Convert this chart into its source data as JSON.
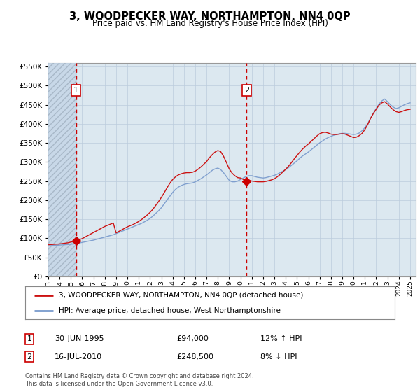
{
  "title": "3, WOODPECKER WAY, NORTHAMPTON, NN4 0QP",
  "subtitle": "Price paid vs. HM Land Registry's House Price Index (HPI)",
  "sale1_label": "1",
  "sale2_label": "2",
  "sale1_x": 1995.46,
  "sale2_x": 2010.54,
  "sale1_price": 94000,
  "sale2_price": 248500,
  "legend_line1": "3, WOODPECKER WAY, NORTHAMPTON, NN4 0QP (detached house)",
  "legend_line2": "HPI: Average price, detached house, West Northamptonshire",
  "note1_date": "30-JUN-1995",
  "note1_price": "£94,000",
  "note1_hpi": "12% ↑ HPI",
  "note2_date": "16-JUL-2010",
  "note2_price": "£248,500",
  "note2_hpi": "8% ↓ HPI",
  "footer": "Contains HM Land Registry data © Crown copyright and database right 2024.\nThis data is licensed under the Open Government Licence v3.0.",
  "hpi_color": "#7799cc",
  "price_color": "#cc1111",
  "sale_marker_color": "#cc0000",
  "dashed_line_color": "#cc0000",
  "grid_color": "#bbccdd",
  "bg_main": "#dce8f0",
  "bg_hatch": "#c8d8e8",
  "ylim_min": 0,
  "ylim_max": 560000,
  "xlim_min": 1993.0,
  "xlim_max": 2025.5,
  "hpi_dates": [
    1993.0,
    1993.25,
    1993.5,
    1993.75,
    1994.0,
    1994.25,
    1994.5,
    1994.75,
    1995.0,
    1995.25,
    1995.5,
    1995.75,
    1996.0,
    1996.25,
    1996.5,
    1996.75,
    1997.0,
    1997.25,
    1997.5,
    1997.75,
    1998.0,
    1998.25,
    1998.5,
    1998.75,
    1999.0,
    1999.25,
    1999.5,
    1999.75,
    2000.0,
    2000.25,
    2000.5,
    2000.75,
    2001.0,
    2001.25,
    2001.5,
    2001.75,
    2002.0,
    2002.25,
    2002.5,
    2002.75,
    2003.0,
    2003.25,
    2003.5,
    2003.75,
    2004.0,
    2004.25,
    2004.5,
    2004.75,
    2005.0,
    2005.25,
    2005.5,
    2005.75,
    2006.0,
    2006.25,
    2006.5,
    2006.75,
    2007.0,
    2007.25,
    2007.5,
    2007.75,
    2008.0,
    2008.25,
    2008.5,
    2008.75,
    2009.0,
    2009.25,
    2009.5,
    2009.75,
    2010.0,
    2010.25,
    2010.5,
    2010.75,
    2011.0,
    2011.25,
    2011.5,
    2011.75,
    2012.0,
    2012.25,
    2012.5,
    2012.75,
    2013.0,
    2013.25,
    2013.5,
    2013.75,
    2014.0,
    2014.25,
    2014.5,
    2014.75,
    2015.0,
    2015.25,
    2015.5,
    2015.75,
    2016.0,
    2016.25,
    2016.5,
    2016.75,
    2017.0,
    2017.25,
    2017.5,
    2017.75,
    2018.0,
    2018.25,
    2018.5,
    2018.75,
    2019.0,
    2019.25,
    2019.5,
    2019.75,
    2020.0,
    2020.25,
    2020.5,
    2020.75,
    2021.0,
    2021.25,
    2021.5,
    2021.75,
    2022.0,
    2022.25,
    2022.5,
    2022.75,
    2023.0,
    2023.25,
    2023.5,
    2023.75,
    2024.0,
    2024.25,
    2024.5,
    2024.75,
    2025.0
  ],
  "hpi_values": [
    80000,
    80500,
    81000,
    81500,
    82000,
    82500,
    83000,
    83500,
    84000,
    85000,
    86000,
    87500,
    89000,
    90500,
    92000,
    93500,
    95000,
    97000,
    99000,
    101000,
    103000,
    105000,
    107000,
    109000,
    112000,
    115000,
    118000,
    121000,
    124000,
    127000,
    130000,
    133000,
    136000,
    139000,
    143000,
    147000,
    152000,
    158000,
    165000,
    172000,
    180000,
    190000,
    200000,
    210000,
    220000,
    228000,
    234000,
    238000,
    241000,
    243000,
    244000,
    245000,
    248000,
    252000,
    256000,
    261000,
    266000,
    272000,
    278000,
    282000,
    284000,
    280000,
    272000,
    262000,
    252000,
    248000,
    248000,
    250000,
    254000,
    258000,
    262000,
    264000,
    264000,
    262000,
    260000,
    259000,
    258000,
    259000,
    261000,
    263000,
    265000,
    268000,
    272000,
    276000,
    280000,
    285000,
    291000,
    297000,
    303000,
    310000,
    316000,
    321000,
    326000,
    332000,
    338000,
    344000,
    350000,
    355000,
    360000,
    364000,
    367000,
    370000,
    372000,
    374000,
    375000,
    375000,
    374000,
    373000,
    372000,
    373000,
    376000,
    382000,
    390000,
    400000,
    415000,
    428000,
    440000,
    452000,
    460000,
    465000,
    458000,
    450000,
    444000,
    440000,
    442000,
    446000,
    450000,
    453000,
    455000
  ],
  "red_dates": [
    1993.0,
    1993.25,
    1993.5,
    1993.75,
    1994.0,
    1994.25,
    1994.5,
    1994.75,
    1995.0,
    1995.25,
    1995.5,
    1995.75,
    1996.0,
    1996.25,
    1996.5,
    1996.75,
    1997.0,
    1997.25,
    1997.5,
    1997.75,
    1998.0,
    1998.25,
    1998.5,
    1998.75,
    1999.0,
    1999.25,
    1999.5,
    1999.75,
    2000.0,
    2000.25,
    2000.5,
    2000.75,
    2001.0,
    2001.25,
    2001.5,
    2001.75,
    2002.0,
    2002.25,
    2002.5,
    2002.75,
    2003.0,
    2003.25,
    2003.5,
    2003.75,
    2004.0,
    2004.25,
    2004.5,
    2004.75,
    2005.0,
    2005.25,
    2005.5,
    2005.75,
    2006.0,
    2006.25,
    2006.5,
    2006.75,
    2007.0,
    2007.25,
    2007.5,
    2007.75,
    2008.0,
    2008.25,
    2008.5,
    2008.75,
    2009.0,
    2009.25,
    2009.5,
    2009.75,
    2010.0,
    2010.25,
    2010.5,
    2010.75,
    2011.0,
    2011.25,
    2011.5,
    2011.75,
    2012.0,
    2012.25,
    2012.5,
    2012.75,
    2013.0,
    2013.25,
    2013.5,
    2013.75,
    2014.0,
    2014.25,
    2014.5,
    2014.75,
    2015.0,
    2015.25,
    2015.5,
    2015.75,
    2016.0,
    2016.25,
    2016.5,
    2016.75,
    2017.0,
    2017.25,
    2017.5,
    2017.75,
    2018.0,
    2018.25,
    2018.5,
    2018.75,
    2019.0,
    2019.25,
    2019.5,
    2019.75,
    2020.0,
    2020.25,
    2020.5,
    2020.75,
    2021.0,
    2021.25,
    2021.5,
    2021.75,
    2022.0,
    2022.25,
    2022.5,
    2022.75,
    2023.0,
    2023.25,
    2023.5,
    2023.75,
    2024.0,
    2024.25,
    2024.5,
    2024.75,
    2025.0
  ],
  "red_values": [
    83000,
    83500,
    84000,
    84500,
    85000,
    86000,
    87000,
    88000,
    90000,
    92000,
    94000,
    96000,
    99000,
    103000,
    107000,
    111000,
    115000,
    119000,
    123000,
    127000,
    131000,
    134000,
    137000,
    140000,
    114000,
    118000,
    122000,
    126000,
    130000,
    133000,
    136000,
    140000,
    144000,
    149000,
    155000,
    161000,
    168000,
    176000,
    186000,
    196000,
    207000,
    219000,
    232000,
    244000,
    254000,
    261000,
    266000,
    269000,
    271000,
    272000,
    272000,
    273000,
    276000,
    281000,
    287000,
    294000,
    301000,
    311000,
    319000,
    326000,
    330000,
    327000,
    315000,
    299000,
    282000,
    271000,
    264000,
    259000,
    258000,
    254000,
    250000,
    252000,
    250000,
    249000,
    248000,
    248000,
    248000,
    249000,
    251000,
    253000,
    256000,
    261000,
    267000,
    274000,
    281000,
    289000,
    298000,
    308000,
    317000,
    326000,
    334000,
    341000,
    347000,
    354000,
    361000,
    368000,
    374000,
    377000,
    378000,
    376000,
    373000,
    372000,
    372000,
    373000,
    374000,
    373000,
    370000,
    367000,
    364000,
    365000,
    369000,
    375000,
    385000,
    398000,
    414000,
    427000,
    438000,
    449000,
    455000,
    458000,
    452000,
    444000,
    437000,
    432000,
    430000,
    432000,
    435000,
    437000,
    438000
  ]
}
